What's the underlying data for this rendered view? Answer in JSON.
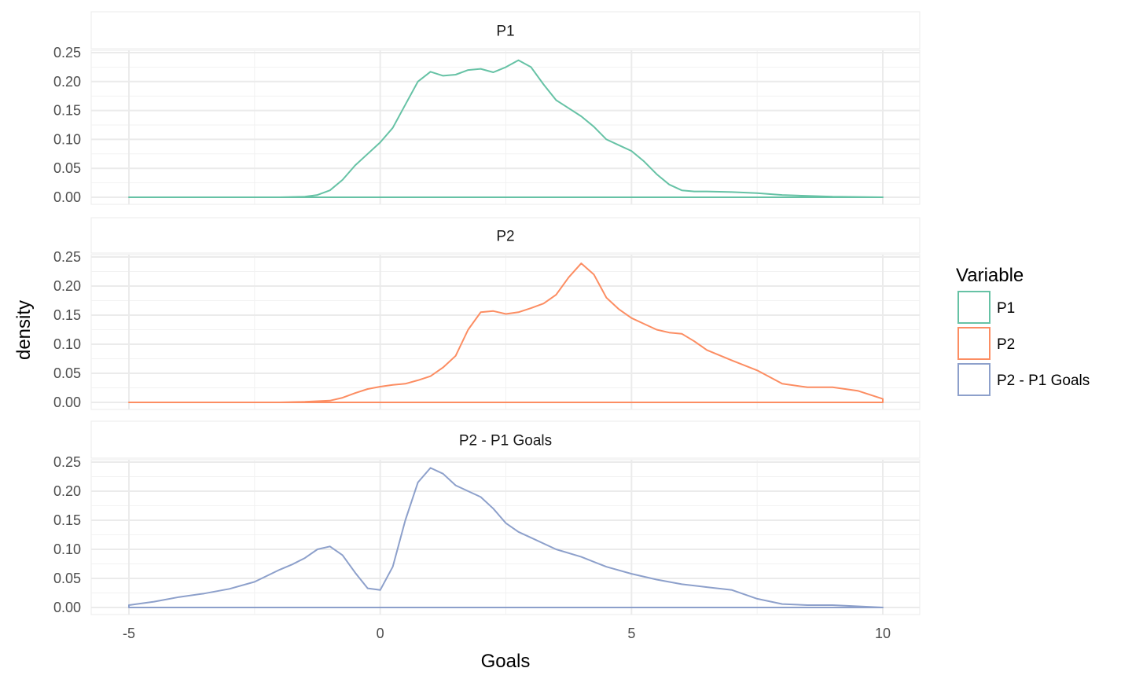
{
  "chart_data": {
    "type": "area",
    "facet": "vertical",
    "xlabel": "Goals",
    "ylabel": "density",
    "xlim": [
      -5,
      10
    ],
    "ylim": [
      0,
      0.25
    ],
    "x_ticks": [
      -5,
      0,
      5,
      10
    ],
    "x_tick_labels": [
      "-5",
      "0",
      "5",
      "10"
    ],
    "y_ticks": [
      0,
      0.05,
      0.1,
      0.15,
      0.2,
      0.25
    ],
    "y_tick_labels": [
      "0.00",
      "0.05",
      "0.10",
      "0.15",
      "0.20",
      "0.25"
    ],
    "grid": true,
    "legend": {
      "title": "Variable",
      "position": "right"
    },
    "series": [
      {
        "name": "P1",
        "color": "#66c2a5",
        "x": [
          -5,
          -2,
          -1.5,
          -1.25,
          -1,
          -0.75,
          -0.5,
          -0.25,
          0,
          0.25,
          0.5,
          0.75,
          1,
          1.25,
          1.5,
          1.75,
          2,
          2.25,
          2.5,
          2.75,
          3,
          3.25,
          3.5,
          3.75,
          4,
          4.25,
          4.5,
          4.75,
          5,
          5.25,
          5.5,
          5.75,
          6,
          6.25,
          6.5,
          7,
          7.5,
          8,
          9,
          10
        ],
        "y": [
          0,
          0,
          0.001,
          0.004,
          0.012,
          0.03,
          0.055,
          0.075,
          0.095,
          0.12,
          0.16,
          0.2,
          0.217,
          0.21,
          0.212,
          0.22,
          0.222,
          0.216,
          0.225,
          0.237,
          0.225,
          0.195,
          0.168,
          0.154,
          0.14,
          0.122,
          0.1,
          0.09,
          0.08,
          0.062,
          0.04,
          0.022,
          0.012,
          0.01,
          0.01,
          0.009,
          0.007,
          0.004,
          0.001,
          0
        ]
      },
      {
        "name": "P2",
        "color": "#fc8d62",
        "x": [
          -5,
          -2,
          -1.5,
          -1,
          -0.75,
          -0.5,
          -0.25,
          0,
          0.25,
          0.5,
          0.75,
          1,
          1.25,
          1.5,
          1.75,
          2,
          2.25,
          2.5,
          2.75,
          3,
          3.25,
          3.5,
          3.75,
          4,
          4.25,
          4.5,
          4.75,
          5,
          5.25,
          5.5,
          5.75,
          6,
          6.25,
          6.5,
          7,
          7.5,
          8,
          8.5,
          9,
          9.5,
          10
        ],
        "y": [
          0,
          0,
          0.001,
          0.003,
          0.008,
          0.016,
          0.023,
          0.027,
          0.03,
          0.032,
          0.038,
          0.045,
          0.06,
          0.08,
          0.125,
          0.155,
          0.157,
          0.152,
          0.155,
          0.162,
          0.17,
          0.185,
          0.215,
          0.239,
          0.22,
          0.18,
          0.16,
          0.145,
          0.135,
          0.125,
          0.12,
          0.118,
          0.105,
          0.09,
          0.072,
          0.055,
          0.032,
          0.026,
          0.026,
          0.02,
          0.006
        ]
      },
      {
        "name": "P2 - P1 Goals",
        "color": "#8da0cb",
        "x": [
          -5,
          -4.5,
          -4,
          -3.5,
          -3,
          -2.5,
          -2,
          -1.75,
          -1.5,
          -1.25,
          -1,
          -0.75,
          -0.5,
          -0.25,
          0,
          0.25,
          0.5,
          0.75,
          1,
          1.25,
          1.5,
          1.75,
          2,
          2.25,
          2.5,
          2.75,
          3,
          3.5,
          4,
          4.5,
          5,
          5.5,
          6,
          6.5,
          7,
          7.5,
          8,
          8.5,
          9,
          9.5,
          10
        ],
        "y": [
          0.004,
          0.01,
          0.018,
          0.024,
          0.032,
          0.044,
          0.065,
          0.074,
          0.085,
          0.1,
          0.105,
          0.09,
          0.06,
          0.033,
          0.03,
          0.07,
          0.15,
          0.215,
          0.24,
          0.23,
          0.21,
          0.2,
          0.19,
          0.17,
          0.145,
          0.13,
          0.12,
          0.1,
          0.087,
          0.07,
          0.058,
          0.048,
          0.04,
          0.035,
          0.03,
          0.015,
          0.006,
          0.004,
          0.004,
          0.002,
          0
        ]
      }
    ]
  }
}
